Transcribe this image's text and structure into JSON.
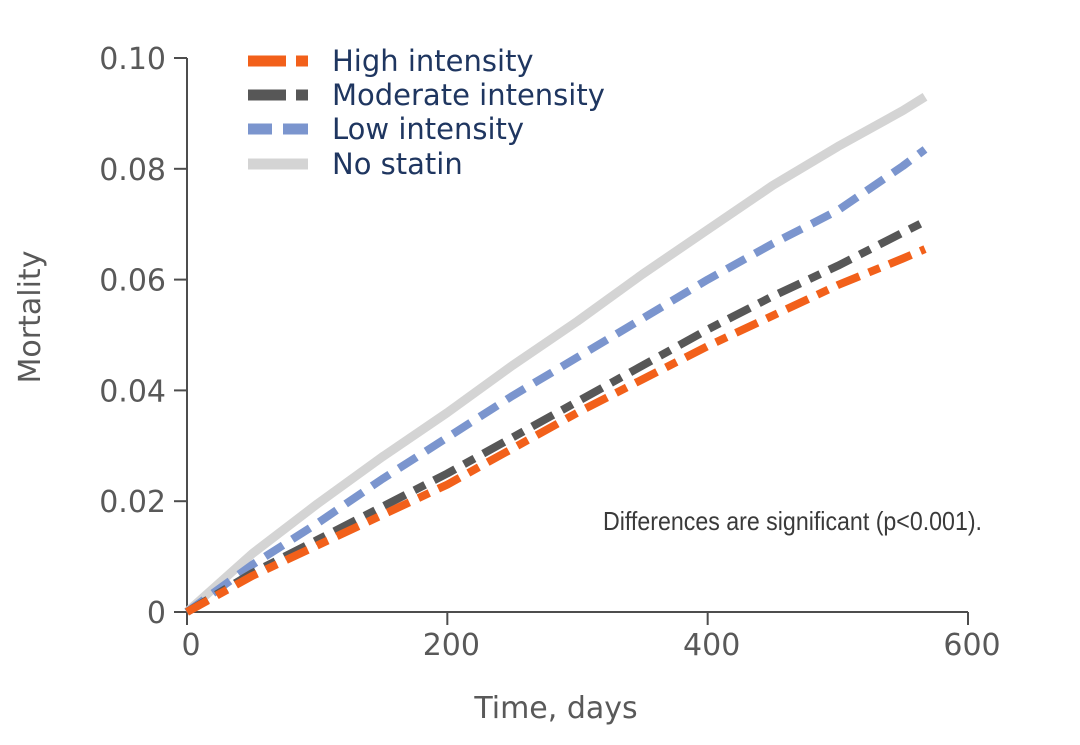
{
  "figure": {
    "background": "#ffffff",
    "axis_color": "#4d4d4d",
    "tick_label_color": "#595959",
    "axis_title_color": "#595959"
  },
  "chart_data": {
    "type": "line",
    "title": "",
    "xlabel": "Time, days",
    "ylabel": "Mortality",
    "xlim": [
      0,
      600
    ],
    "ylim": [
      0,
      0.1
    ],
    "grid": false,
    "legend_position": "top-left-inside",
    "xticks": {
      "values": [
        0,
        200,
        400,
        600
      ],
      "labels": [
        "0",
        "200",
        "400",
        "600"
      ]
    },
    "yticks": {
      "values": [
        0,
        0.02,
        0.04,
        0.06,
        0.08,
        0.1
      ],
      "labels": [
        "0",
        "0.02",
        "0.04",
        "0.06",
        "0.08",
        "0.10"
      ]
    },
    "annotation": {
      "text": "Differences are significant (p<0.001).",
      "color": "#3a3a3a"
    },
    "legend_text_color": "#1f3660",
    "x": [
      0,
      50,
      100,
      150,
      200,
      250,
      300,
      350,
      400,
      450,
      500,
      550,
      567
    ],
    "series": [
      {
        "name": "High intensity",
        "color": "#f2601a",
        "style": "dashed",
        "dash": "24 10 12 10",
        "legend_dash": "38 10 13",
        "width": 8,
        "values": [
          0,
          0.0065,
          0.012,
          0.0175,
          0.023,
          0.0295,
          0.036,
          0.042,
          0.048,
          0.0535,
          0.059,
          0.0638,
          0.0655
        ]
      },
      {
        "name": "Moderate intensity",
        "color": "#575757",
        "style": "dashed",
        "dash": "24 10 12 10",
        "legend_dash": "38 10 13",
        "width": 8,
        "values": [
          0,
          0.007,
          0.013,
          0.019,
          0.025,
          0.0315,
          0.038,
          0.0445,
          0.051,
          0.057,
          0.0625,
          0.0685,
          0.0705
        ]
      },
      {
        "name": "Low intensity",
        "color": "#7b95ce",
        "style": "dashed",
        "dash": "21 11",
        "legend_dash": "24 11 26",
        "width": 8,
        "values": [
          0,
          0.0085,
          0.016,
          0.024,
          0.0315,
          0.039,
          0.046,
          0.053,
          0.06,
          0.0665,
          0.0725,
          0.0805,
          0.0835
        ]
      },
      {
        "name": "No statin",
        "color": "#d4d4d4",
        "style": "solid",
        "dash": "",
        "legend_dash": "",
        "width": 9,
        "values": [
          0,
          0.0105,
          0.0195,
          0.028,
          0.036,
          0.0445,
          0.0525,
          0.061,
          0.069,
          0.077,
          0.084,
          0.0905,
          0.093
        ]
      }
    ]
  }
}
